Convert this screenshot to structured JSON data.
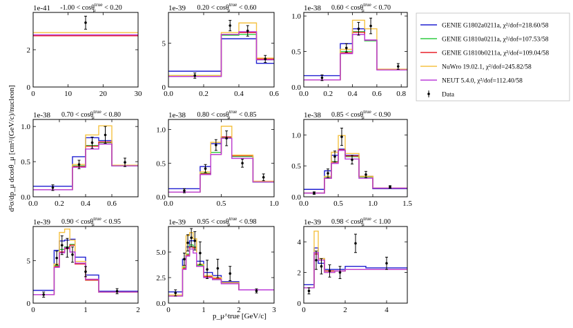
{
  "figure": {
    "ylabel": "d²σ/dp_μ dcosθ_μ [cm²/(GeV/c)/nucleon]",
    "xlabel": "p_μ^true [GeV/c]"
  },
  "legend": [
    {
      "label": "GENIE G1802a0211a, χ²/dof=218.60/58",
      "color": "#1f1fd1"
    },
    {
      "label": "GENIE G1810a0211a, χ²/dof=107.53/58",
      "color": "#2ecc40"
    },
    {
      "label": "GENIE G1810b0211a, χ²/dof=109.04/58",
      "color": "#e8202a"
    },
    {
      "label": "NuWro 19.02.1, χ²/dof=245.82/58",
      "color": "#f5c242"
    },
    {
      "label": "NEUT 5.4.0, χ²/dof=112.40/58",
      "color": "#bb3bd9"
    },
    {
      "label": "Data",
      "color": "#000000"
    }
  ],
  "chart_data": [
    {
      "type": "line",
      "title": "-1.00 < cosθ_μ^true < 0.20",
      "exponent": "1e-41",
      "xlim": [
        0,
        30
      ],
      "ylim": [
        0,
        4
      ],
      "xticks": [
        0,
        10,
        20,
        30
      ],
      "yticks": [
        0,
        2
      ],
      "edges": [
        0,
        30
      ],
      "series": [
        {
          "values": [
            2.75
          ]
        },
        {
          "values": [
            2.75
          ]
        },
        {
          "values": [
            2.75
          ]
        },
        {
          "values": [
            2.92
          ]
        },
        {
          "values": [
            2.8
          ]
        }
      ],
      "data": {
        "x": [
          15
        ],
        "y": [
          3.45
        ],
        "err": [
          0.35
        ]
      }
    },
    {
      "type": "line",
      "title": "0.20 < cosθ_μ^true < 0.60",
      "exponent": "1e-39",
      "xlim": [
        0,
        0.6
      ],
      "ylim": [
        0,
        8.5
      ],
      "xticks": [
        0.0,
        0.2,
        0.4,
        0.6
      ],
      "yticks": [
        0,
        5
      ],
      "edges": [
        0,
        0.3,
        0.4,
        0.5,
        0.6
      ],
      "series": [
        {
          "values": [
            1.8,
            5.5,
            5.5,
            2.7
          ]
        },
        {
          "values": [
            1.3,
            5.9,
            6.0,
            3.1
          ]
        },
        {
          "values": [
            1.2,
            6.0,
            6.2,
            3.2
          ]
        },
        {
          "values": [
            1.3,
            6.2,
            7.3,
            3.3
          ]
        },
        {
          "values": [
            1.2,
            6.0,
            6.3,
            3.1
          ]
        }
      ],
      "data": {
        "x": [
          0.15,
          0.35,
          0.45,
          0.55
        ],
        "y": [
          1.3,
          7.0,
          6.4,
          3.2
        ],
        "err": [
          0.3,
          0.6,
          0.6,
          0.4
        ]
      }
    },
    {
      "type": "line",
      "title": "0.60 < cosθ_μ^true < 0.70",
      "exponent": "1e-38",
      "xlim": [
        0,
        0.85
      ],
      "ylim": [
        0,
        1.05
      ],
      "xticks": [
        0.0,
        0.2,
        0.4,
        0.6,
        0.8
      ],
      "yticks": [
        0.0,
        0.5,
        1.0
      ],
      "edges": [
        0,
        0.3,
        0.4,
        0.5,
        0.6,
        0.7,
        0.85
      ],
      "series": [
        {
          "values": [
            0.16,
            0.61,
            0.82,
            0.66,
            0.25,
            0.25
          ]
        },
        {
          "values": [
            0.1,
            0.5,
            0.78,
            0.65,
            0.25,
            0.25
          ]
        },
        {
          "values": [
            0.1,
            0.48,
            0.77,
            0.66,
            0.25,
            0.25
          ]
        },
        {
          "values": [
            0.1,
            0.53,
            0.94,
            0.82,
            0.25,
            0.25
          ]
        },
        {
          "values": [
            0.1,
            0.47,
            0.74,
            0.66,
            0.24,
            0.24
          ]
        }
      ],
      "data": {
        "x": [
          0.15,
          0.35,
          0.45,
          0.55,
          0.775
        ],
        "y": [
          0.13,
          0.55,
          0.82,
          0.86,
          0.29
        ],
        "err": [
          0.04,
          0.06,
          0.09,
          0.11,
          0.04
        ]
      }
    },
    {
      "type": "line",
      "title": "0.70 < cosθ_μ^true < 0.80",
      "exponent": "1e-38",
      "xlim": [
        0,
        0.8
      ],
      "ylim": [
        0,
        1.1
      ],
      "xticks": [
        0.0,
        0.2,
        0.4,
        0.6
      ],
      "yticks": [
        0.0,
        0.5,
        1.0
      ],
      "edges": [
        0,
        0.3,
        0.4,
        0.5,
        0.6,
        0.8
      ],
      "series": [
        {
          "values": [
            0.15,
            0.57,
            0.84,
            0.8,
            0.44
          ]
        },
        {
          "values": [
            0.1,
            0.44,
            0.73,
            0.77,
            0.44
          ]
        },
        {
          "values": [
            0.1,
            0.43,
            0.72,
            0.78,
            0.45
          ]
        },
        {
          "values": [
            0.1,
            0.46,
            0.88,
            1.01,
            0.45
          ]
        },
        {
          "values": [
            0.1,
            0.42,
            0.68,
            0.75,
            0.44
          ]
        }
      ],
      "data": {
        "x": [
          0.15,
          0.35,
          0.45,
          0.55,
          0.7
        ],
        "y": [
          0.13,
          0.46,
          0.77,
          0.88,
          0.49
        ],
        "err": [
          0.04,
          0.06,
          0.08,
          0.12,
          0.06
        ]
      }
    },
    {
      "type": "line",
      "title": "0.80 < cosθ_μ^true < 0.85",
      "exponent": "1e-38",
      "xlim": [
        0,
        1.0
      ],
      "ylim": [
        0,
        1.15
      ],
      "xticks": [
        0.0,
        0.5,
        1.0
      ],
      "yticks": [
        0.0,
        0.5,
        1.0
      ],
      "edges": [
        0,
        0.3,
        0.4,
        0.5,
        0.6,
        0.8,
        1.0
      ],
      "series": [
        {
          "values": [
            0.12,
            0.45,
            0.79,
            0.89,
            0.6,
            0.22
          ]
        },
        {
          "values": [
            0.07,
            0.35,
            0.66,
            0.88,
            0.6,
            0.22
          ]
        },
        {
          "values": [
            0.07,
            0.34,
            0.63,
            0.89,
            0.61,
            0.23
          ]
        },
        {
          "values": [
            0.07,
            0.37,
            0.81,
            1.05,
            0.62,
            0.23
          ]
        },
        {
          "values": [
            0.07,
            0.33,
            0.63,
            0.87,
            0.57,
            0.22
          ]
        }
      ],
      "data": {
        "x": [
          0.15,
          0.35,
          0.45,
          0.55,
          0.7,
          0.9
        ],
        "y": [
          0.09,
          0.42,
          0.77,
          0.87,
          0.5,
          0.29
        ],
        "err": [
          0.03,
          0.06,
          0.08,
          0.11,
          0.06,
          0.05
        ]
      }
    },
    {
      "type": "line",
      "title": "0.85 < cosθ_μ^true < 0.90",
      "exponent": "1e-38",
      "xlim": [
        0,
        1.5
      ],
      "ylim": [
        0,
        1.25
      ],
      "xticks": [
        0.0,
        0.5,
        1.0,
        1.5
      ],
      "yticks": [
        0.0,
        0.5,
        1.0
      ],
      "edges": [
        0,
        0.3,
        0.4,
        0.5,
        0.6,
        0.8,
        1.0,
        1.5
      ],
      "series": [
        {
          "values": [
            0.12,
            0.42,
            0.67,
            0.77,
            0.67,
            0.33,
            0.13
          ]
        },
        {
          "values": [
            0.06,
            0.31,
            0.57,
            0.75,
            0.65,
            0.32,
            0.14
          ]
        },
        {
          "values": [
            0.06,
            0.3,
            0.56,
            0.76,
            0.66,
            0.33,
            0.14
          ]
        },
        {
          "values": [
            0.06,
            0.33,
            0.72,
            0.99,
            0.7,
            0.33,
            0.14
          ]
        },
        {
          "values": [
            0.06,
            0.3,
            0.54,
            0.75,
            0.61,
            0.3,
            0.14
          ]
        }
      ],
      "data": {
        "x": [
          0.15,
          0.35,
          0.45,
          0.55,
          0.7,
          0.9,
          1.25
        ],
        "y": [
          0.06,
          0.38,
          0.65,
          0.97,
          0.6,
          0.36,
          0.16
        ],
        "err": [
          0.02,
          0.07,
          0.09,
          0.14,
          0.07,
          0.05,
          0.02
        ]
      }
    },
    {
      "type": "line",
      "title": "0.90 < cosθ_μ^true < 0.95",
      "exponent": "1e-39",
      "xlim": [
        0,
        2.0
      ],
      "ylim": [
        0,
        9.0
      ],
      "xticks": [
        0,
        1,
        2
      ],
      "yticks": [
        0,
        5
      ],
      "edges": [
        0,
        0.4,
        0.5,
        0.6,
        0.7,
        0.8,
        1.0,
        1.25,
        2.0
      ],
      "series": [
        {
          "values": [
            1.5,
            6.2,
            7.3,
            7.4,
            7.5,
            5.4,
            3.3,
            1.4
          ]
        },
        {
          "values": [
            1.0,
            4.4,
            6.3,
            6.6,
            6.9,
            4.6,
            2.7,
            1.3
          ]
        },
        {
          "values": [
            1.0,
            4.3,
            6.0,
            6.4,
            6.8,
            4.6,
            2.7,
            1.3
          ]
        },
        {
          "values": [
            1.0,
            4.6,
            8.3,
            8.7,
            7.4,
            4.9,
            2.8,
            1.3
          ]
        },
        {
          "values": [
            1.0,
            4.2,
            5.9,
            6.5,
            6.0,
            4.7,
            2.8,
            1.3
          ]
        }
      ],
      "data": {
        "x": [
          0.2,
          0.45,
          0.55,
          0.65,
          0.75,
          1.0,
          1.6
        ],
        "y": [
          1.0,
          5.3,
          6.8,
          6.5,
          5.7,
          3.7,
          1.4
        ],
        "err": [
          0.3,
          0.8,
          1.1,
          1.1,
          0.9,
          0.6,
          0.3
        ]
      }
    },
    {
      "type": "line",
      "title": "0.95 < cosθ_μ^true < 0.98",
      "exponent": "1e-39",
      "xlim": [
        0,
        3.0
      ],
      "ylim": [
        0,
        7.5
      ],
      "xticks": [
        0,
        1,
        2,
        3
      ],
      "yticks": [
        0.0,
        2.5,
        5.0
      ],
      "edges": [
        0,
        0.4,
        0.5,
        0.6,
        0.7,
        0.8,
        1.0,
        1.25,
        1.5,
        2.0,
        3.0
      ],
      "series": [
        {
          "values": [
            1.1,
            4.3,
            5.5,
            6.1,
            6.1,
            4.1,
            3.0,
            2.7,
            2.1,
            1.3
          ]
        },
        {
          "values": [
            0.7,
            3.5,
            4.8,
            5.7,
            5.5,
            3.7,
            2.6,
            2.3,
            2.0,
            1.3
          ]
        },
        {
          "values": [
            0.7,
            3.4,
            4.7,
            5.5,
            5.4,
            3.6,
            2.6,
            2.4,
            2.0,
            1.3
          ]
        },
        {
          "values": [
            0.8,
            3.6,
            6.6,
            6.9,
            6.3,
            3.8,
            2.7,
            2.5,
            2.0,
            1.3
          ]
        },
        {
          "values": [
            0.7,
            3.3,
            4.6,
            5.3,
            4.9,
            3.6,
            2.5,
            2.3,
            1.9,
            1.3
          ]
        }
      ],
      "data": {
        "x": [
          0.2,
          0.45,
          0.55,
          0.65,
          0.75,
          0.9,
          1.1,
          1.4,
          1.75,
          2.5
        ],
        "y": [
          1.0,
          4.3,
          5.9,
          6.4,
          6.1,
          4.9,
          3.3,
          3.4,
          2.9,
          1.2
        ],
        "err": [
          0.3,
          0.6,
          0.8,
          0.9,
          0.9,
          1.1,
          0.9,
          0.9,
          0.7,
          0.2
        ]
      }
    },
    {
      "type": "line",
      "title": "0.98 < cosθ_μ^true < 1.00",
      "exponent": "1e-39",
      "xlim": [
        0,
        5.0
      ],
      "ylim": [
        0,
        5.0
      ],
      "xticks": [
        0,
        2,
        4
      ],
      "yticks": [
        0,
        2,
        4
      ],
      "edges": [
        0,
        0.5,
        0.7,
        1.0,
        1.5,
        2.0,
        3.0,
        5.0
      ],
      "series": [
        {
          "values": [
            1.2,
            3.6,
            2.6,
            2.2,
            2.2,
            2.4,
            2.3
          ]
        },
        {
          "values": [
            1.0,
            3.3,
            2.9,
            2.1,
            2.1,
            2.2,
            2.2
          ]
        },
        {
          "values": [
            1.0,
            3.2,
            2.9,
            2.1,
            2.1,
            2.2,
            2.2
          ]
        },
        {
          "values": [
            1.0,
            4.7,
            2.9,
            2.0,
            2.1,
            2.2,
            2.2
          ]
        },
        {
          "values": [
            1.0,
            3.3,
            2.8,
            2.0,
            2.1,
            2.2,
            2.2
          ]
        }
      ],
      "data": {
        "x": [
          0.25,
          0.6,
          0.85,
          1.25,
          1.75,
          2.5,
          4.0
        ],
        "y": [
          0.8,
          2.8,
          2.4,
          2.1,
          2.0,
          3.9,
          2.6
        ],
        "err": [
          0.2,
          0.6,
          0.5,
          0.4,
          0.4,
          0.6,
          0.4
        ]
      }
    }
  ]
}
